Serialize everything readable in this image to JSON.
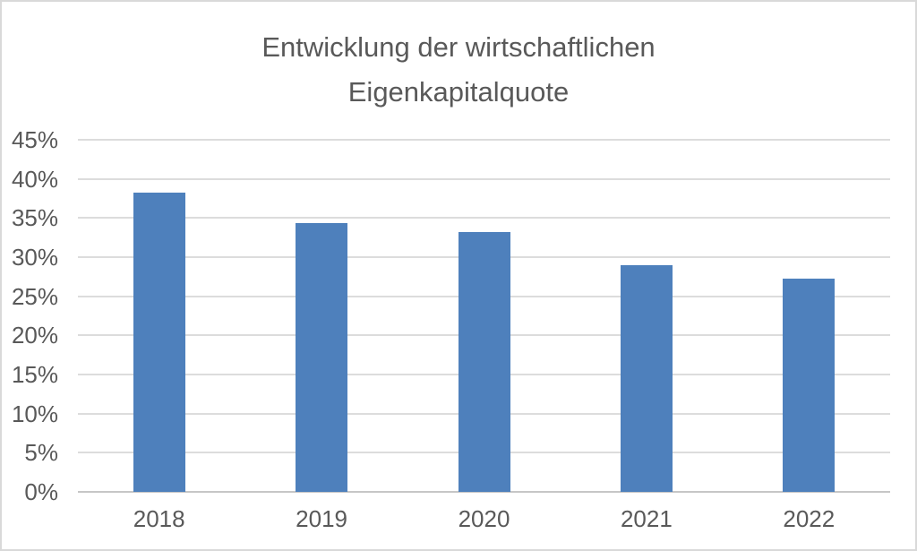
{
  "window": {
    "background": "#ffffff",
    "frame_border_color": "#d9d9d9"
  },
  "title": {
    "line1": "Entwicklung der wirtschaftlichen",
    "line2": "Eigenkapitalquote",
    "color": "#595959"
  },
  "chart_data": {
    "type": "bar",
    "title": "Entwicklung der wirtschaftlichen Eigenkapitalquote",
    "categories": [
      "2018",
      "2019",
      "2020",
      "2021",
      "2022"
    ],
    "values": [
      38.2,
      34.3,
      33.2,
      29.0,
      27.3
    ],
    "value_unit": "%",
    "xlabel": "",
    "ylabel": "",
    "ylim": [
      0,
      45
    ],
    "ytick_step": 5,
    "ytick_labels": [
      "0%",
      "5%",
      "10%",
      "15%",
      "20%",
      "25%",
      "30%",
      "35%",
      "40%",
      "45%"
    ],
    "legend": "none",
    "grid": "horizontal",
    "bar_color": "#4e80bc",
    "gridline_color": "#dcdcdc",
    "axis_line_color": "#c6c6c6",
    "tick_label_color": "#595959"
  }
}
